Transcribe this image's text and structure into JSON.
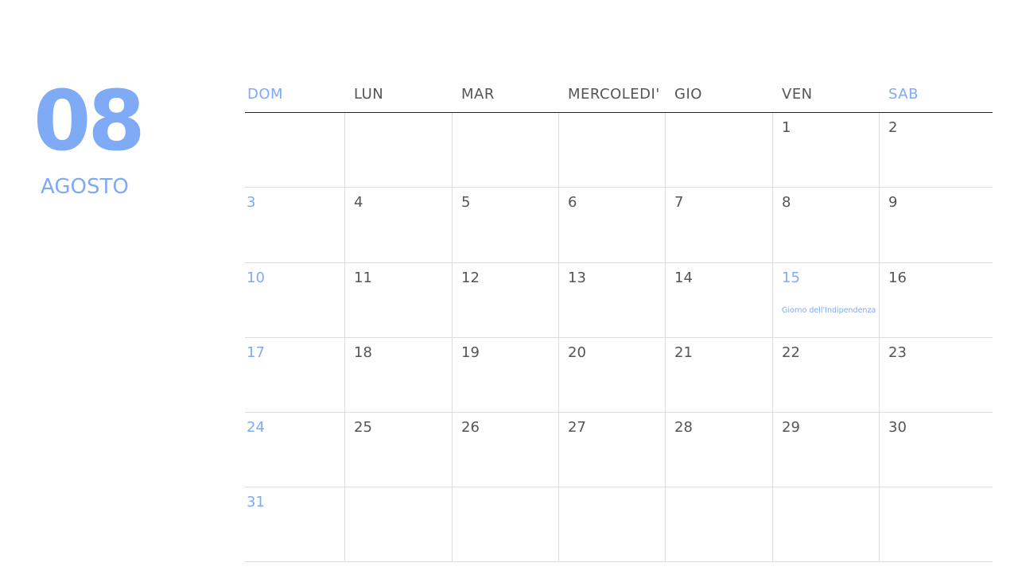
{
  "month": {
    "number": "08",
    "name": "AGOSTO"
  },
  "weekdays": [
    "DOM",
    "LUN",
    "MAR",
    "MERCOLEDI'",
    "GIO",
    "VEN",
    "SAB"
  ],
  "accent_color": "#7eaaf6",
  "weeks": [
    [
      "",
      "",
      "",
      "",
      "",
      "1",
      "2"
    ],
    [
      "3",
      "4",
      "5",
      "6",
      "7",
      "8",
      "9"
    ],
    [
      "10",
      "11",
      "12",
      "13",
      "14",
      "15",
      "16"
    ],
    [
      "17",
      "18",
      "19",
      "20",
      "21",
      "22",
      "23"
    ],
    [
      "24",
      "25",
      "26",
      "27",
      "28",
      "29",
      "30"
    ],
    [
      "31",
      "",
      "",
      "",
      "",
      "",
      ""
    ]
  ],
  "events": [
    {
      "day": "15",
      "label": "Giorno dell'Indipendenza"
    }
  ]
}
